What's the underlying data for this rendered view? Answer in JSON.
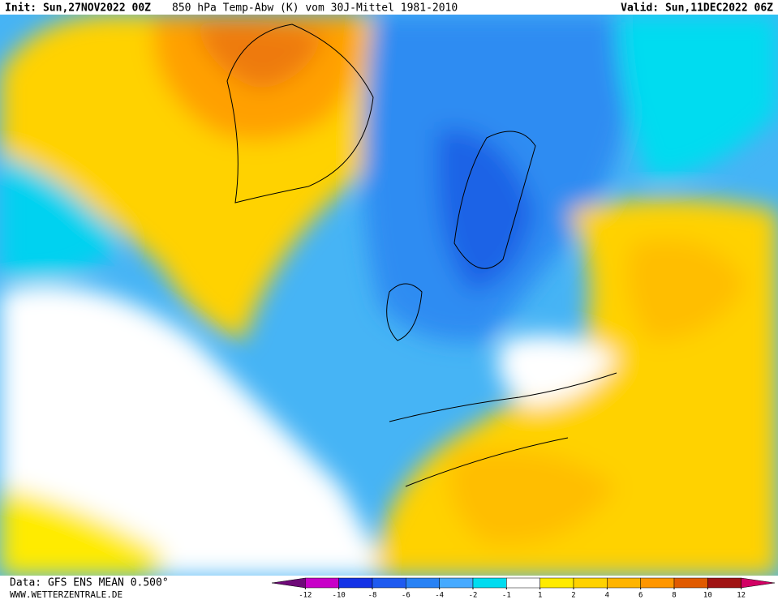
{
  "header": {
    "init": "Init: Sun,27NOV2022 00Z",
    "title": "850 hPa Temp-Abw (K) vom 30J-Mittel 1981-2010",
    "valid": "Valid: Sun,11DEC2022 06Z"
  },
  "footer": {
    "data": "Data: GFS ENS MEAN 0.500°",
    "site": "WWW.WETTERZENTRALE.DE"
  },
  "colorbar": {
    "ticks": [
      -12,
      -10,
      -8,
      -6,
      -4,
      -2,
      -1,
      1,
      2,
      4,
      6,
      8,
      10,
      12
    ],
    "colors": [
      "#6e0a78",
      "#c800c8",
      "#1432e6",
      "#1e5af0",
      "#2882f5",
      "#46aaff",
      "#00dcf0",
      "#ffffff",
      "#ffeb00",
      "#ffd200",
      "#ffb400",
      "#ff9600",
      "#e05a00",
      "#a01414",
      "#d20064"
    ]
  }
}
